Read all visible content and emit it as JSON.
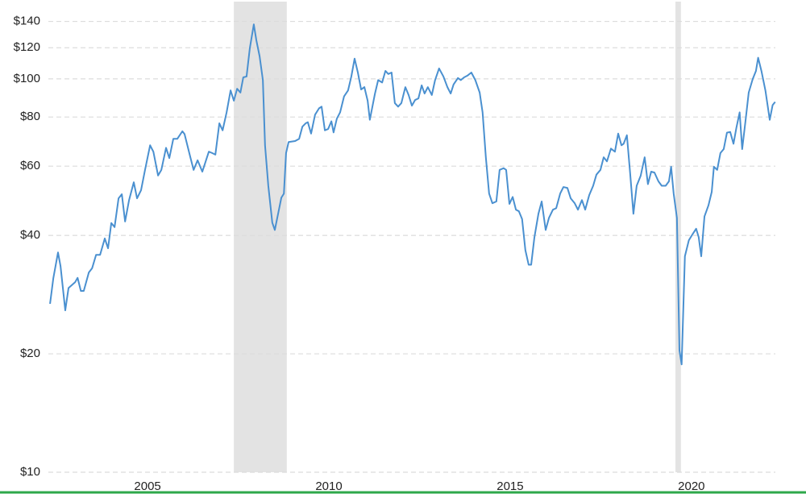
{
  "chart_data": {
    "type": "line",
    "log_scale": true,
    "grid": true,
    "color": "#4a90d0",
    "recession_color": "#e3e3e3",
    "xlim": [
      2000.93,
      2023.16
    ],
    "xticks": [
      2005,
      2010,
      2015,
      2020
    ],
    "ylim": [
      10,
      155
    ],
    "yticks": [
      {
        "value": 10,
        "label": "$10"
      },
      {
        "value": 20,
        "label": "$20"
      },
      {
        "value": 40,
        "label": "$40"
      },
      {
        "value": 60,
        "label": "$60"
      },
      {
        "value": 80,
        "label": "$80"
      },
      {
        "value": 100,
        "label": "$100"
      },
      {
        "value": 120,
        "label": "$120"
      },
      {
        "value": 140,
        "label": "$140"
      }
    ],
    "recessions": [
      [
        2007.38,
        2008.84
      ],
      [
        2019.56,
        2019.71
      ]
    ],
    "x": [
      2002.31,
      2002.4,
      2002.53,
      2002.6,
      2002.73,
      2002.82,
      2003.0,
      2003.07,
      2003.16,
      2003.24,
      2003.38,
      2003.47,
      2003.58,
      2003.69,
      2003.82,
      2003.91,
      2004.0,
      2004.09,
      2004.2,
      2004.29,
      2004.38,
      2004.49,
      2004.62,
      2004.71,
      2004.82,
      2004.93,
      2005.07,
      2005.16,
      2005.29,
      2005.38,
      2005.51,
      2005.6,
      2005.71,
      2005.82,
      2005.96,
      2006.02,
      2006.18,
      2006.27,
      2006.38,
      2006.51,
      2006.69,
      2006.78,
      2006.87,
      2006.98,
      2007.07,
      2007.18,
      2007.29,
      2007.38,
      2007.47,
      2007.56,
      2007.64,
      2007.73,
      2007.82,
      2007.93,
      2008.0,
      2008.09,
      2008.18,
      2008.24,
      2008.33,
      2008.44,
      2008.51,
      2008.6,
      2008.69,
      2008.76,
      2008.82,
      2008.89,
      2009.07,
      2009.18,
      2009.27,
      2009.36,
      2009.42,
      2009.51,
      2009.62,
      2009.73,
      2009.8,
      2009.89,
      2009.98,
      2010.07,
      2010.13,
      2010.22,
      2010.31,
      2010.42,
      2010.53,
      2010.62,
      2010.71,
      2010.8,
      2010.89,
      2010.98,
      2011.07,
      2011.13,
      2011.27,
      2011.36,
      2011.47,
      2011.56,
      2011.64,
      2011.73,
      2011.82,
      2011.91,
      2012.0,
      2012.11,
      2012.2,
      2012.29,
      2012.38,
      2012.47,
      2012.56,
      2012.64,
      2012.73,
      2012.84,
      2012.93,
      2013.04,
      2013.16,
      2013.27,
      2013.36,
      2013.44,
      2013.56,
      2013.64,
      2013.73,
      2013.82,
      2013.93,
      2014.04,
      2014.16,
      2014.24,
      2014.33,
      2014.42,
      2014.51,
      2014.62,
      2014.71,
      2014.82,
      2014.89,
      2014.98,
      2015.07,
      2015.16,
      2015.24,
      2015.33,
      2015.42,
      2015.51,
      2015.58,
      2015.67,
      2015.78,
      2015.87,
      2015.98,
      2016.07,
      2016.18,
      2016.27,
      2016.38,
      2016.47,
      2016.58,
      2016.67,
      2016.78,
      2016.87,
      2016.98,
      2017.07,
      2017.18,
      2017.29,
      2017.38,
      2017.49,
      2017.58,
      2017.67,
      2017.78,
      2017.89,
      2017.98,
      2018.07,
      2018.13,
      2018.22,
      2018.31,
      2018.4,
      2018.49,
      2018.6,
      2018.71,
      2018.8,
      2018.89,
      2018.98,
      2019.09,
      2019.18,
      2019.29,
      2019.38,
      2019.44,
      2019.51,
      2019.6,
      2019.67,
      2019.73,
      2019.82,
      2019.93,
      2020.04,
      2020.13,
      2020.2,
      2020.27,
      2020.36,
      2020.47,
      2020.56,
      2020.62,
      2020.71,
      2020.8,
      2020.89,
      2020.98,
      2021.07,
      2021.16,
      2021.24,
      2021.33,
      2021.4,
      2021.49,
      2021.58,
      2021.69,
      2021.78,
      2021.84,
      2021.93,
      2022.04,
      2022.16,
      2022.24,
      2022.31
    ],
    "values": [
      26.8,
      31.1,
      36.2,
      33.4,
      25.8,
      29.4,
      30.4,
      31.2,
      28.9,
      28.9,
      32.2,
      33.0,
      35.7,
      35.7,
      39.3,
      37.1,
      43.0,
      42.0,
      49.7,
      50.9,
      43.4,
      49.2,
      54.6,
      49.7,
      52.1,
      58.7,
      67.8,
      65.3,
      56.8,
      58.7,
      66.8,
      62.9,
      70.4,
      70.4,
      73.6,
      72.4,
      63.2,
      58.7,
      62.1,
      58.1,
      65.3,
      64.8,
      64.2,
      77.1,
      74.0,
      82.2,
      93.5,
      88.0,
      94.4,
      92.3,
      100.9,
      101.4,
      119.6,
      137.6,
      125.4,
      114.2,
      99.3,
      67.8,
      53.5,
      43.1,
      41.3,
      45.4,
      49.9,
      51.1,
      64.8,
      69.1,
      69.5,
      70.4,
      75.6,
      77.1,
      77.6,
      72.6,
      81.1,
      84.2,
      85.0,
      74.0,
      74.6,
      78.0,
      73.1,
      79.2,
      82.2,
      90.3,
      93.5,
      101.4,
      112.6,
      103.8,
      94.0,
      95.3,
      88.0,
      78.7,
      91.6,
      99.3,
      97.9,
      104.8,
      102.9,
      103.8,
      86.8,
      85.0,
      86.8,
      95.3,
      91.0,
      85.5,
      88.4,
      89.2,
      96.3,
      91.8,
      95.3,
      91.0,
      99.3,
      106.3,
      101.4,
      95.3,
      91.8,
      96.8,
      100.5,
      99.3,
      100.9,
      101.9,
      103.8,
      99.3,
      92.3,
      82.2,
      63.2,
      51.1,
      48.3,
      48.8,
      58.7,
      59.3,
      58.7,
      48.1,
      50.1,
      46.5,
      46.1,
      44.0,
      36.7,
      33.7,
      33.7,
      39.6,
      45.4,
      48.8,
      41.3,
      44.3,
      46.5,
      46.9,
      51.1,
      53.1,
      52.8,
      49.7,
      48.3,
      46.5,
      49.2,
      46.5,
      50.6,
      53.5,
      57.1,
      58.7,
      63.2,
      61.7,
      66.5,
      65.3,
      72.6,
      67.8,
      68.4,
      71.9,
      57.5,
      45.4,
      53.5,
      56.7,
      63.2,
      54.0,
      58.1,
      57.8,
      54.9,
      53.5,
      53.5,
      54.9,
      59.8,
      51.1,
      44.3,
      20.4,
      18.8,
      35.4,
      38.9,
      40.4,
      41.6,
      39.6,
      35.4,
      44.7,
      47.7,
      51.6,
      59.8,
      58.7,
      64.8,
      66.3,
      73.0,
      73.3,
      68.4,
      75.1,
      82.2,
      66.3,
      78.0,
      92.3,
      99.9,
      104.8,
      113.2,
      104.8,
      93.5,
      78.7,
      85.8,
      87.4
    ]
  }
}
